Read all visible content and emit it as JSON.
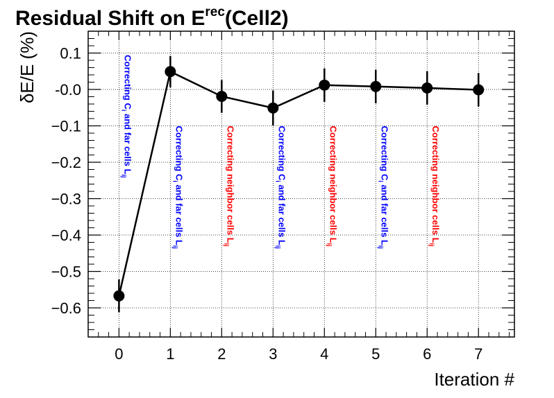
{
  "chart_data": {
    "type": "scatter",
    "title": "Residual Shift on E",
    "title_superscript": "rec",
    "title_suffix": "(Cell2)",
    "xlabel": "Iteration #",
    "ylabel": "δE/E (%)",
    "xlim": [
      -0.6,
      7.7
    ],
    "ylim": [
      -0.68,
      0.16
    ],
    "xticks": [
      0,
      1,
      2,
      3,
      4,
      5,
      6,
      7
    ],
    "yticks": [
      0.1,
      -0.0,
      -0.1,
      -0.2,
      -0.3,
      -0.4,
      -0.5,
      -0.6
    ],
    "ytick_labels": [
      "0.1",
      "-0.0",
      "−0.1",
      "−0.2",
      "−0.3",
      "−0.4",
      "−0.5",
      "−0.6"
    ],
    "grid": true,
    "connect_points": true,
    "series": [
      {
        "x": [
          0,
          1,
          2,
          3,
          4,
          5,
          6,
          7
        ],
        "y": [
          -0.567,
          0.049,
          -0.019,
          -0.051,
          0.012,
          0.008,
          0.004,
          -0.001
        ],
        "yerr": [
          0.045,
          0.043,
          0.045,
          0.048,
          0.046,
          0.046,
          0.046,
          0.046
        ],
        "color": "#000000"
      }
    ],
    "annotations": [
      {
        "x": 0,
        "text": "Correcting C",
        "sub1": "i",
        "mid": " and far cells L",
        "sub2": "ij",
        "color": "#0000ff",
        "top_y": 0.095
      },
      {
        "x": 1,
        "text": "Correcting C",
        "sub1": "i",
        "mid": " and far cells L",
        "sub2": "ij",
        "color": "#0000ff",
        "top_y": -0.1
      },
      {
        "x": 2,
        "text": "Correcting neighbor cells L",
        "sub1": "",
        "mid": "",
        "sub2": "ij",
        "color": "#ff0000",
        "top_y": -0.1
      },
      {
        "x": 3,
        "text": "Correcting C",
        "sub1": "i",
        "mid": " and far cells L",
        "sub2": "ij",
        "color": "#0000ff",
        "top_y": -0.1
      },
      {
        "x": 4,
        "text": "Correcting neighbor cells L",
        "sub1": "",
        "mid": "",
        "sub2": "ij",
        "color": "#ff0000",
        "top_y": -0.1
      },
      {
        "x": 5,
        "text": "Correcting C",
        "sub1": "i",
        "mid": " and far cells L",
        "sub2": "ij",
        "color": "#0000ff",
        "top_y": -0.1
      },
      {
        "x": 6,
        "text": "Correcting neighbor cells L",
        "sub1": "",
        "mid": "",
        "sub2": "ij",
        "color": "#ff0000",
        "top_y": -0.1
      }
    ]
  }
}
